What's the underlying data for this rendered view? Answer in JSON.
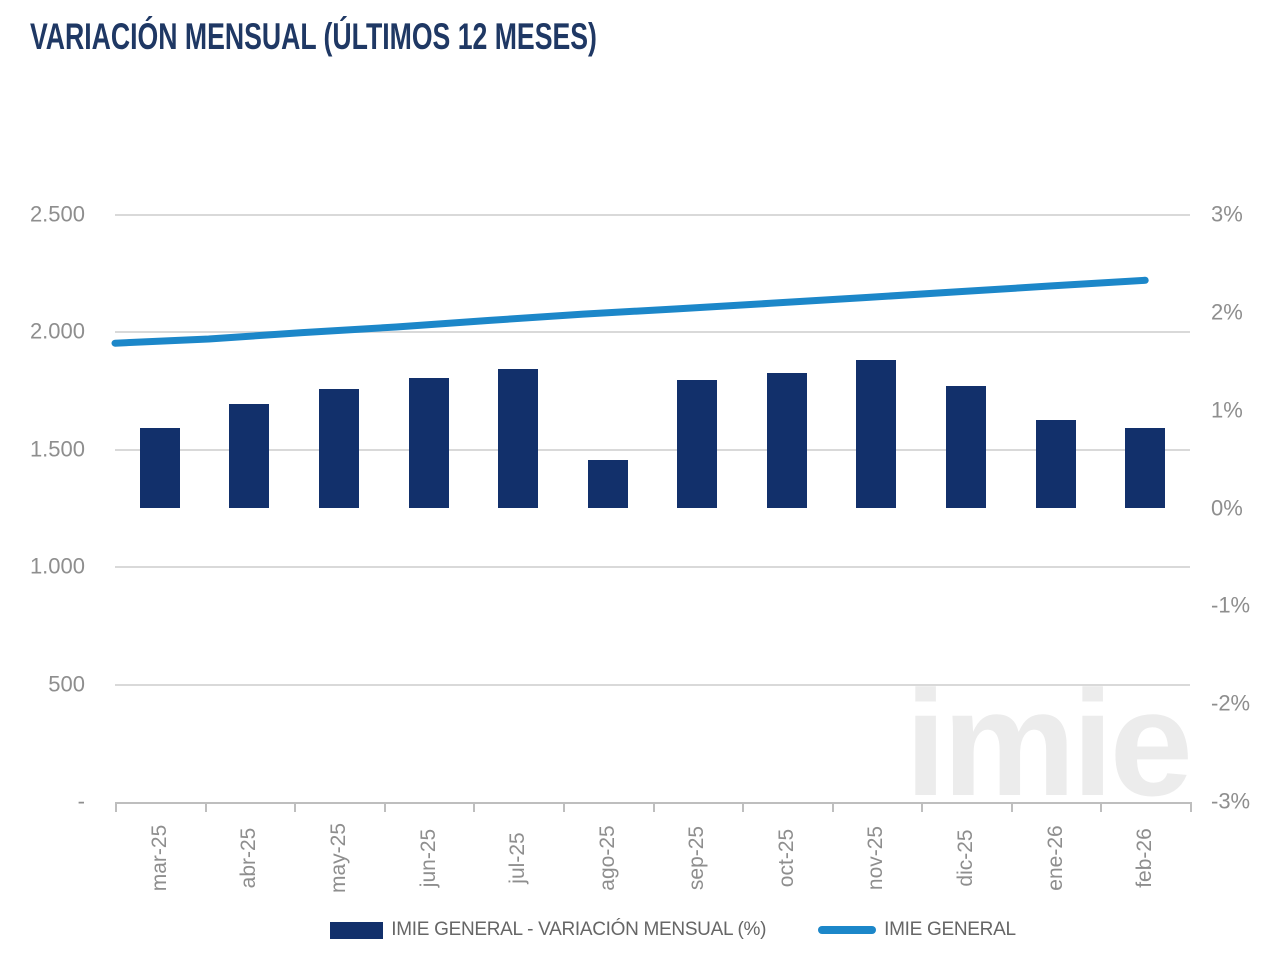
{
  "title": "VARIACIÓN MENSUAL (ÚLTIMOS 12 MESES)",
  "watermark": "imie",
  "legend": {
    "items": [
      {
        "label": "IMIE GENERAL - VARIACIÓN MENSUAL (%)",
        "swatch": "bar",
        "color": "#12306B"
      },
      {
        "label": "IMIE GENERAL",
        "swatch": "line",
        "color": "#1C87C9"
      }
    ]
  },
  "chart_data": {
    "type": "combo",
    "categories": [
      "mar-25",
      "abr-25",
      "may-25",
      "jun-25",
      "jul-25",
      "ago-25",
      "sep-25",
      "oct-25",
      "nov-25",
      "dic-25",
      "ene-26",
      "feb-26"
    ],
    "series": [
      {
        "name": "IMIE GENERAL - VARIACIÓN MENSUAL (%)",
        "type": "bar",
        "yaxis": "right",
        "unit": "%",
        "color": "#12306B",
        "values": [
          0.82,
          1.07,
          1.22,
          1.33,
          1.43,
          0.5,
          1.31,
          1.38,
          1.52,
          1.25,
          0.9,
          0.82
        ]
      },
      {
        "name": "IMIE GENERAL",
        "type": "line",
        "yaxis": "left",
        "color": "#1C87C9",
        "values": [
          1954,
          1972,
          1999,
          2023,
          2051,
          2078,
          2100,
          2124,
          2148,
          2173,
          2198,
          2222
        ]
      }
    ],
    "left_axis": {
      "labels": [
        "2.500",
        "2.000",
        "1.500",
        "1.000",
        "500",
        "-"
      ],
      "min": 0,
      "max": 2500,
      "tick_step": 500
    },
    "right_axis": {
      "labels": [
        "3%",
        "2%",
        "1%",
        "0%",
        "-1%",
        "-2%",
        "-3%"
      ],
      "min": -3,
      "max": 3,
      "tick_step": 1,
      "unit": "%"
    },
    "grid": "horizontal-left-axis",
    "legend_position": "bottom",
    "colors": {
      "title": "#1F3864",
      "axis_text": "#8E8E8E",
      "gridline": "#D9D9D9",
      "axis_line": "#BEBEBE",
      "watermark": "#ECECEC"
    }
  }
}
